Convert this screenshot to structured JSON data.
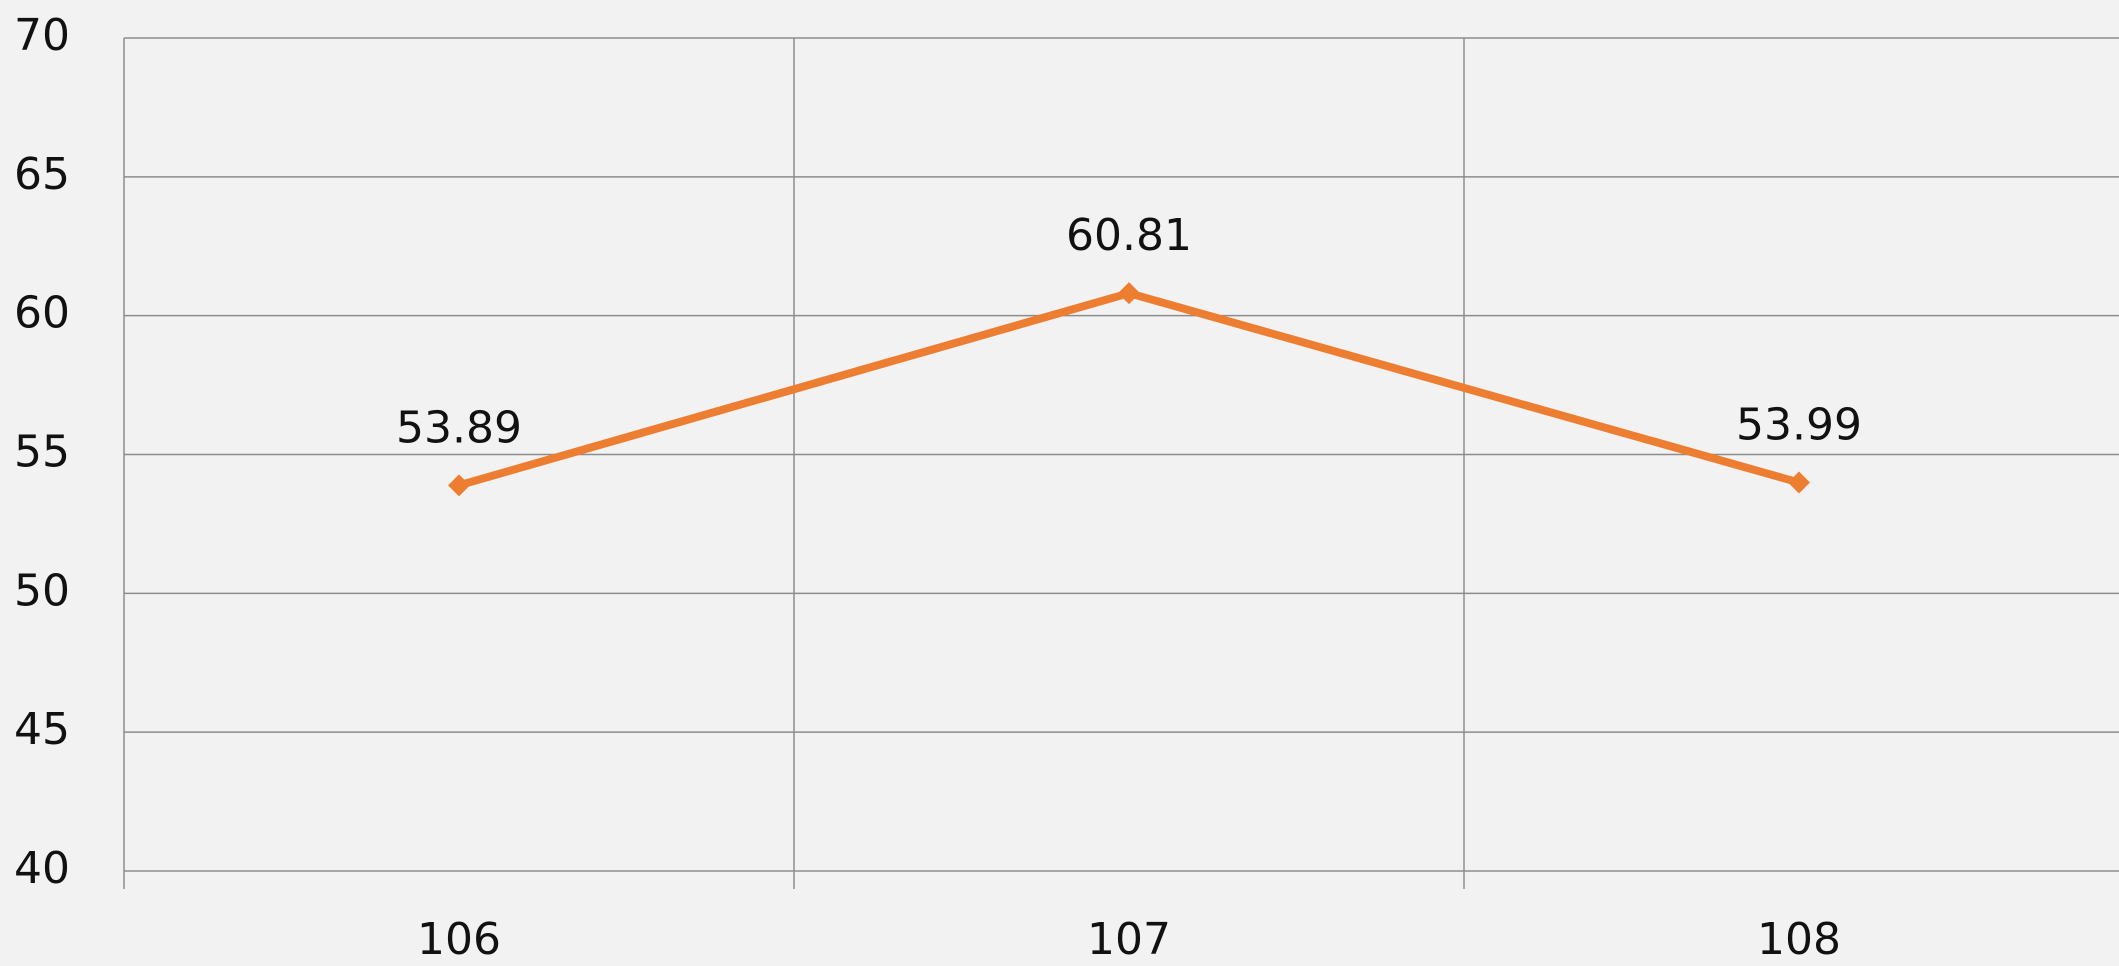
{
  "chart_data": {
    "type": "line",
    "categories": [
      "106",
      "107",
      "108"
    ],
    "values": [
      53.89,
      60.81,
      53.99
    ],
    "color": "#ed7d31",
    "ylim": [
      40,
      70
    ],
    "yticks": [
      40,
      45,
      50,
      55,
      60,
      65,
      70
    ],
    "grid": true
  }
}
